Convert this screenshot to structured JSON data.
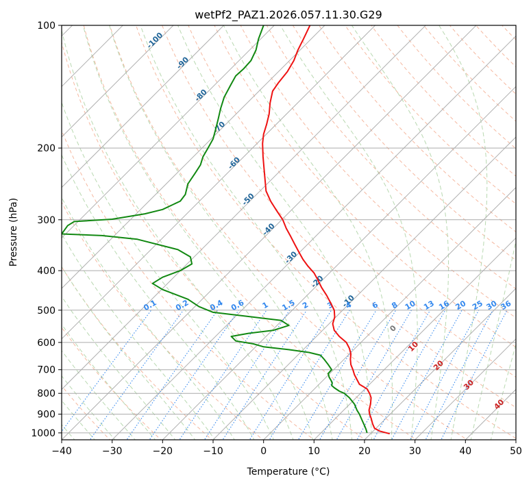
{
  "chart_data": {
    "type": "line",
    "title": "wetPf2_PAZ1.2026.057.11.30.G29",
    "xlabel": "Temperature (°C)",
    "ylabel": "Pressure (hPa)",
    "xlim": [
      -40,
      50
    ],
    "ylim": [
      1040,
      100
    ],
    "y_scale": "log",
    "x_ticks": [
      -40,
      -30,
      -20,
      -10,
      0,
      10,
      20,
      30,
      40,
      50
    ],
    "y_ticks": [
      100,
      200,
      300,
      400,
      500,
      600,
      700,
      800,
      900,
      1000
    ],
    "grid": true,
    "series": [
      {
        "role": "temperature",
        "color": "#ee1111",
        "points": [
          [
            25.0,
            1005
          ],
          [
            23.0,
            990
          ],
          [
            22.0,
            975
          ],
          [
            21.6,
            950
          ],
          [
            21.3,
            920
          ],
          [
            21.0,
            900
          ],
          [
            20.9,
            880
          ],
          [
            21.2,
            850
          ],
          [
            21.3,
            820
          ],
          [
            21.0,
            800
          ],
          [
            20.5,
            780
          ],
          [
            19.0,
            760
          ],
          [
            18.5,
            740
          ],
          [
            18.0,
            720
          ],
          [
            17.7,
            700
          ],
          [
            17.3,
            680
          ],
          [
            17.2,
            660
          ],
          [
            17.3,
            640
          ],
          [
            17.0,
            620
          ],
          [
            16.4,
            600
          ],
          [
            15.0,
            580
          ],
          [
            14.0,
            560
          ],
          [
            13.7,
            540
          ],
          [
            14.1,
            520
          ],
          [
            14.0,
            500
          ],
          [
            13.3,
            480
          ],
          [
            12.5,
            460
          ],
          [
            11.5,
            440
          ],
          [
            10.7,
            420
          ],
          [
            10.0,
            405
          ],
          [
            8.8,
            390
          ],
          [
            7.8,
            375
          ],
          [
            7.0,
            360
          ],
          [
            6.2,
            345
          ],
          [
            5.4,
            330
          ],
          [
            4.5,
            315
          ],
          [
            3.8,
            300
          ],
          [
            2.6,
            285
          ],
          [
            1.4,
            270
          ],
          [
            0.5,
            255
          ],
          [
            0.3,
            240
          ],
          [
            0.1,
            225
          ],
          [
            -0.1,
            210
          ],
          [
            -0.2,
            195
          ],
          [
            0.0,
            185
          ],
          [
            0.6,
            175
          ],
          [
            1.1,
            165
          ],
          [
            1.3,
            155
          ],
          [
            1.8,
            145
          ],
          [
            3.0,
            138
          ],
          [
            4.7,
            130
          ],
          [
            6.0,
            122
          ],
          [
            6.8,
            115
          ],
          [
            7.9,
            108
          ],
          [
            9.2,
            100
          ]
        ]
      },
      {
        "role": "dewpoint",
        "color": "#118811",
        "points": [
          [
            20.5,
            1000
          ],
          [
            20.3,
            980
          ],
          [
            20.0,
            960
          ],
          [
            19.5,
            930
          ],
          [
            19.0,
            900
          ],
          [
            18.5,
            880
          ],
          [
            18.0,
            850
          ],
          [
            17.0,
            820
          ],
          [
            16.0,
            800
          ],
          [
            15.0,
            790
          ],
          [
            14.0,
            775
          ],
          [
            13.5,
            765
          ],
          [
            13.6,
            755
          ],
          [
            13.4,
            745
          ],
          [
            13.0,
            730
          ],
          [
            12.8,
            715
          ],
          [
            13.5,
            700
          ],
          [
            12.8,
            680
          ],
          [
            12.0,
            660
          ],
          [
            11.3,
            645
          ],
          [
            9.0,
            635
          ],
          [
            5.0,
            625
          ],
          [
            0.0,
            615
          ],
          [
            -2.0,
            605
          ],
          [
            -5.5,
            595
          ],
          [
            -6.4,
            580
          ],
          [
            -3.0,
            570
          ],
          [
            2.0,
            560
          ],
          [
            5.0,
            545
          ],
          [
            3.5,
            530
          ],
          [
            -2.0,
            520
          ],
          [
            -10.0,
            506
          ],
          [
            -12.8,
            490
          ],
          [
            -15.0,
            470
          ],
          [
            -20.0,
            445
          ],
          [
            -22.0,
            430
          ],
          [
            -20.0,
            415
          ],
          [
            -16.5,
            400
          ],
          [
            -14.2,
            385
          ],
          [
            -14.5,
            370
          ],
          [
            -17.0,
            355
          ],
          [
            -25.0,
            335
          ],
          [
            -32.0,
            328
          ],
          [
            -40.0,
            325
          ],
          [
            -38.8,
            310
          ],
          [
            -37.5,
            303
          ],
          [
            -30.0,
            299
          ],
          [
            -23.5,
            290
          ],
          [
            -20.0,
            283
          ],
          [
            -16.5,
            270
          ],
          [
            -15.5,
            260
          ],
          [
            -15.0,
            245
          ],
          [
            -13.5,
            230
          ],
          [
            -12.5,
            220
          ],
          [
            -12.0,
            210
          ],
          [
            -11.0,
            200
          ],
          [
            -10.0,
            190
          ],
          [
            -9.5,
            180
          ],
          [
            -9.0,
            170
          ],
          [
            -8.5,
            160
          ],
          [
            -7.8,
            150
          ],
          [
            -6.5,
            140
          ],
          [
            -5.5,
            133
          ],
          [
            -4.0,
            128
          ],
          [
            -2.5,
            122
          ],
          [
            -1.5,
            115
          ],
          [
            -1.0,
            108
          ],
          [
            0.0,
            100
          ]
        ]
      }
    ],
    "annotations": {
      "dry_adiabats": [],
      "moist_adiabats": [],
      "isotherm_labels": [
        -100,
        -90,
        -80,
        -70,
        -60,
        -50,
        -40,
        -30,
        -20,
        -10
      ],
      "mixing_ratio_labels": [
        "0.1",
        "0.2",
        "0.4",
        "0.6",
        "1",
        "1.5",
        "2",
        "3",
        "4",
        "6",
        "8",
        "10",
        "13",
        "16",
        "20",
        "25",
        "30",
        "36"
      ],
      "theta_e_labels": [
        "0",
        "10",
        "20",
        "30",
        "40"
      ]
    },
    "colors": {
      "isotherm": "#b0b0b0",
      "dry_adiabat": "#f5b8a0",
      "moist_adiabat": "#b8d8b0",
      "mixing_ratio": "#3388ee",
      "theta_e": "#cc2222",
      "isotherm_label": "#226699"
    }
  }
}
